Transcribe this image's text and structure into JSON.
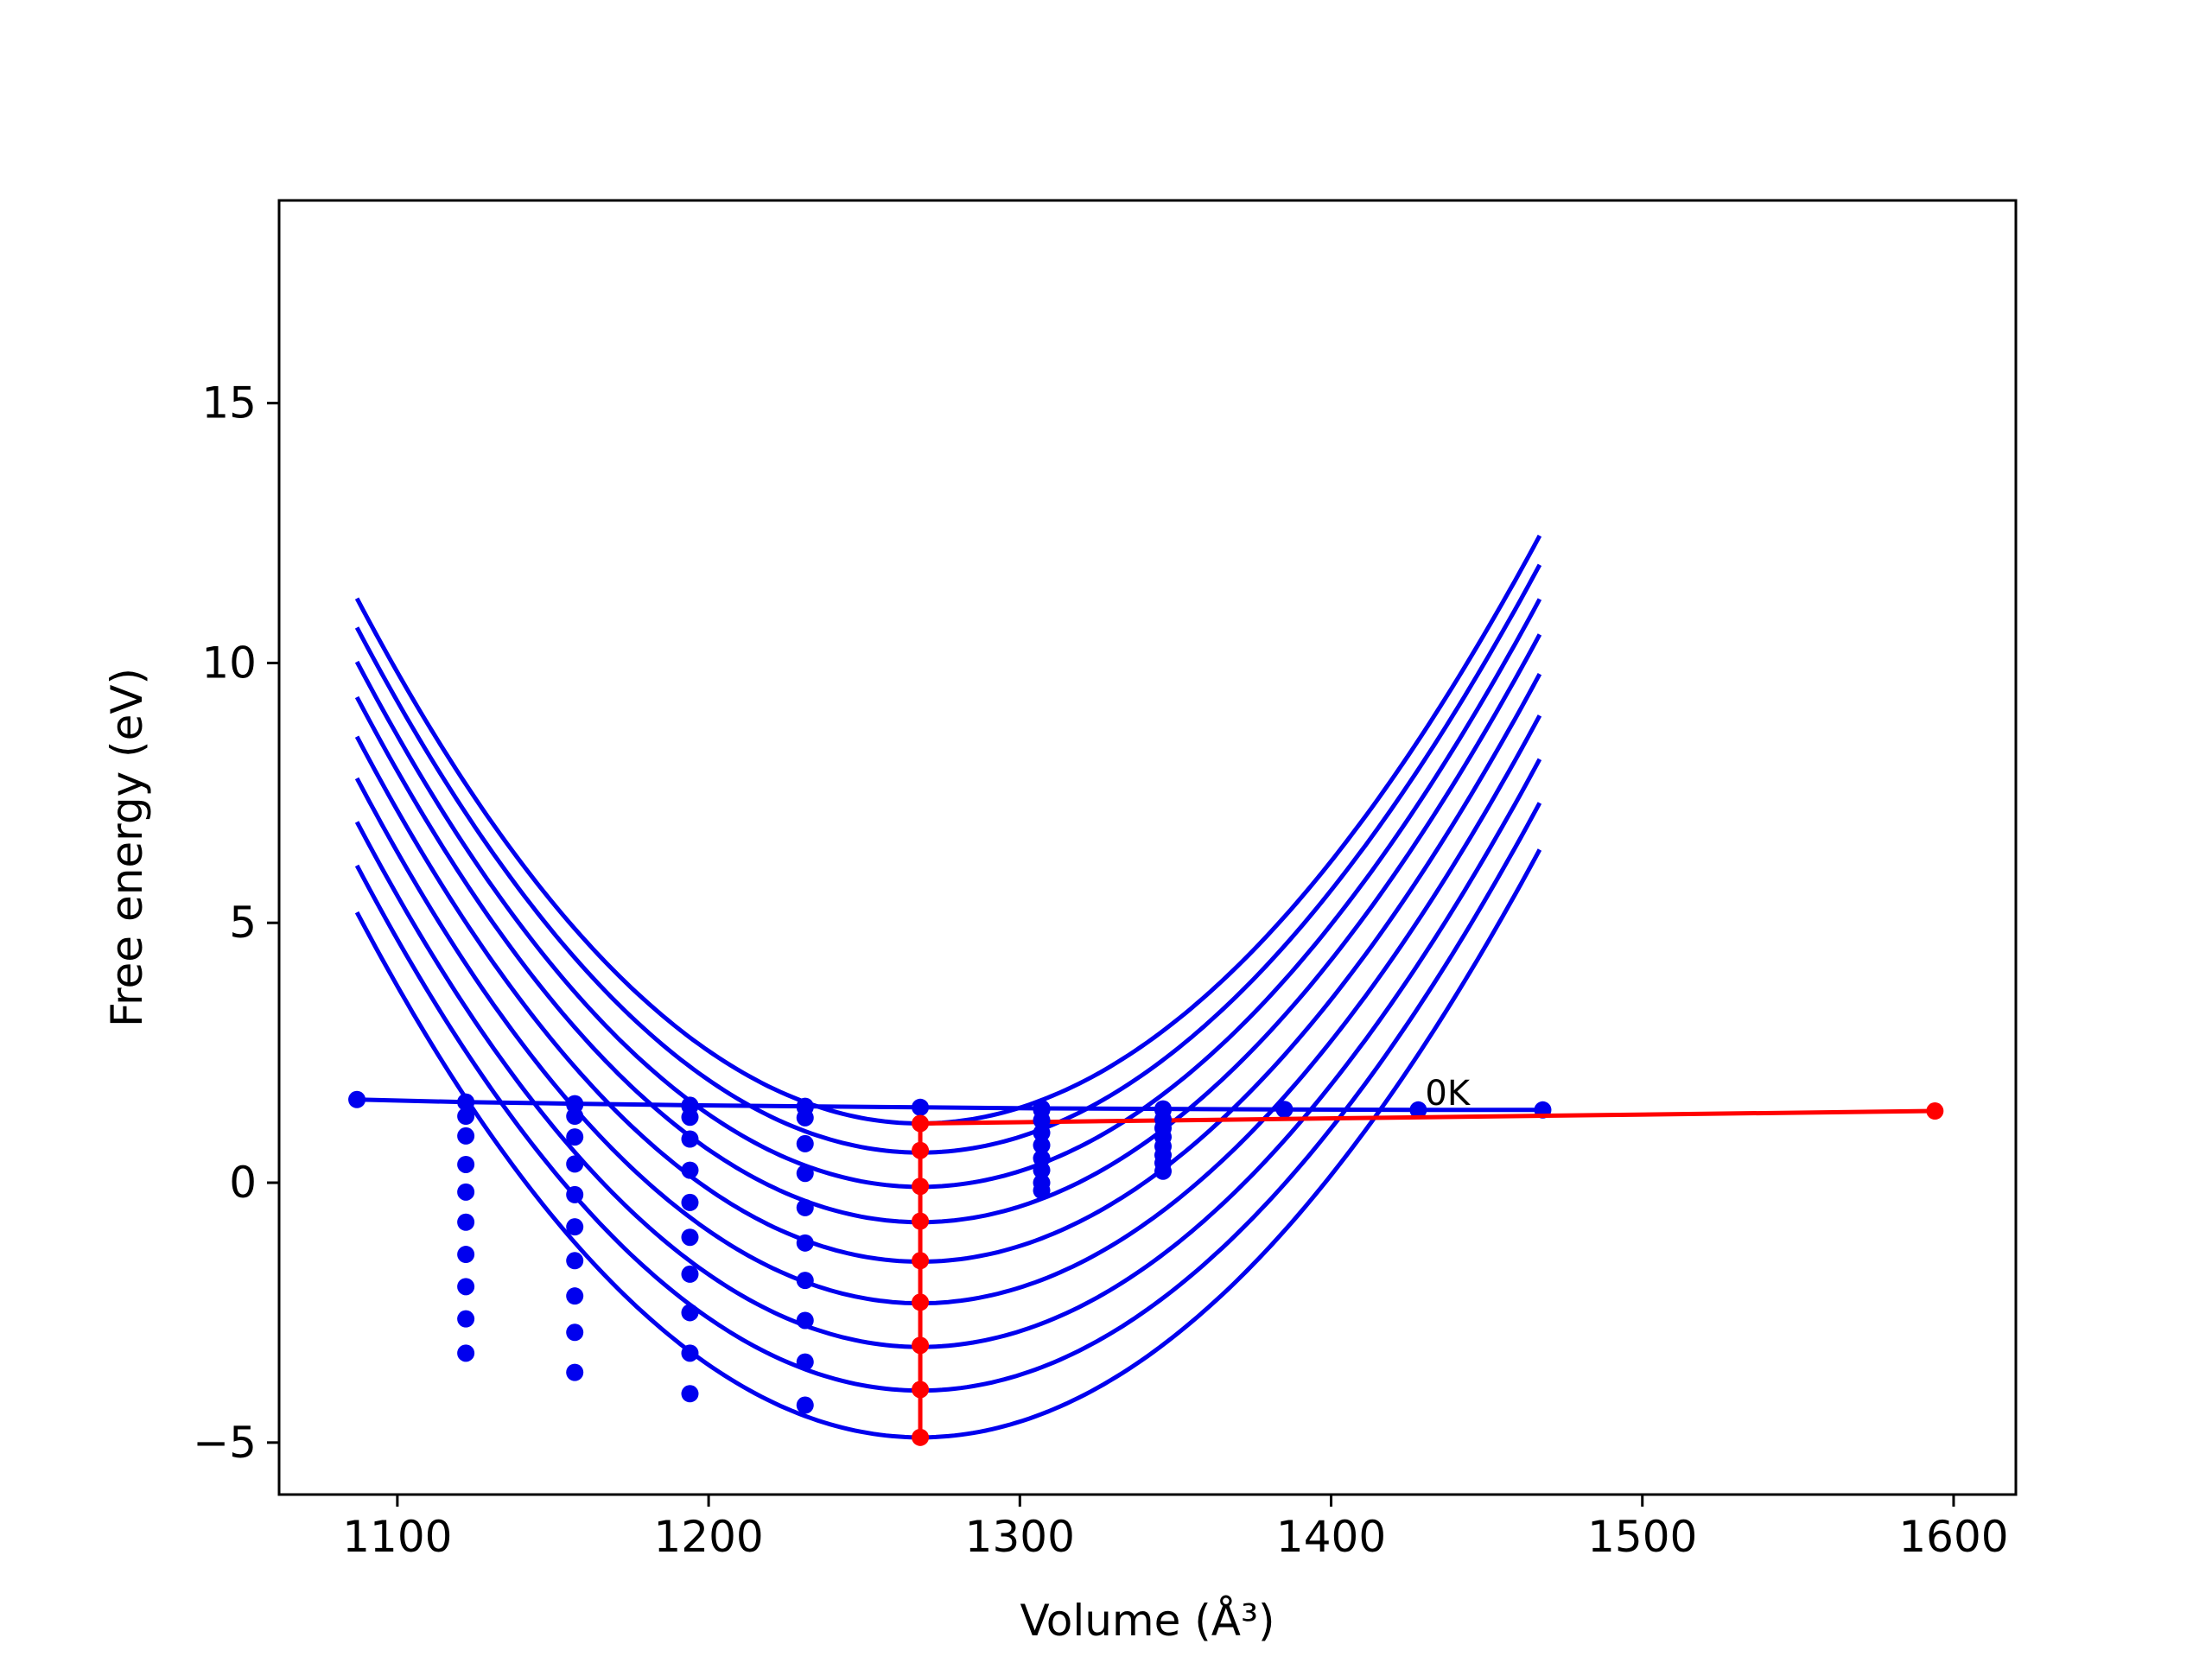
{
  "chart_data": {
    "type": "line",
    "title": "",
    "xlabel": "Volume (Å³)",
    "ylabel": "Free energy (eV)",
    "xlim": [
      1062,
      1620
    ],
    "ylim": [
      -6.0,
      18.9
    ],
    "xticks": [
      1100,
      1200,
      1300,
      1400,
      1500,
      1600
    ],
    "yticks": [
      -5,
      0,
      5,
      10,
      15
    ],
    "ytick_labels": [
      "−5",
      "0",
      "5",
      "10",
      "15"
    ],
    "grid": false,
    "legend": "none",
    "colors": {
      "fits": "#0000ee",
      "points": "#0000ee",
      "eq": "#ff0000"
    },
    "curves": {
      "x_range": [
        1087,
        1468
      ],
      "v0": 1268,
      "a": 0.0002975,
      "b": 6e-08,
      "series": [
        {
          "min": 1.14
        },
        {
          "min": 0.58
        },
        {
          "min": -0.08
        },
        {
          "min": -0.76
        },
        {
          "min": -1.52
        },
        {
          "min": -2.32
        },
        {
          "min": -3.16
        },
        {
          "min": -4.0
        },
        {
          "min": -4.9
        }
      ]
    },
    "point_columns": [
      {
        "x": 1122,
        "y": [
          1.55,
          1.28,
          0.9,
          0.35,
          -0.18,
          -0.76,
          -1.38,
          -2.0,
          -2.62,
          -3.28
        ]
      },
      {
        "x": 1157,
        "y": [
          1.5,
          1.28,
          0.88,
          0.36,
          -0.23,
          -0.85,
          -1.5,
          -2.18,
          -2.88,
          -3.65
        ]
      },
      {
        "x": 1194,
        "y": [
          1.47,
          1.26,
          0.84,
          0.24,
          -0.38,
          -1.05,
          -1.76,
          -2.5,
          -3.28,
          -4.06
        ]
      },
      {
        "x": 1231,
        "y": [
          1.45,
          1.25,
          0.75,
          0.18,
          -0.48,
          -1.16,
          -1.88,
          -2.65,
          -3.45,
          -4.28
        ]
      },
      {
        "x": 1307,
        "y": [
          1.4,
          1.2,
          0.96,
          0.72,
          0.47,
          0.24,
          0.0,
          -0.15
        ]
      },
      {
        "x": 1346,
        "y": [
          1.4,
          1.22,
          1.05,
          0.88,
          0.7,
          0.53,
          0.38,
          0.22
        ]
      }
    ],
    "zero_k_line": {
      "label": "0K",
      "x": [
        1087,
        1122,
        1157,
        1194,
        1231,
        1268,
        1307,
        1346,
        1385,
        1428,
        1468
      ],
      "y": [
        1.6,
        1.55,
        1.52,
        1.49,
        1.47,
        1.45,
        1.43,
        1.42,
        1.41,
        1.4,
        1.4
      ]
    },
    "equilibrium_column": {
      "x": 1268,
      "y": [
        1.14,
        0.62,
        -0.07,
        -0.74,
        -1.5,
        -2.3,
        -3.13,
        -3.98,
        -4.9
      ]
    },
    "equilibrium_line": {
      "x": [
        1268,
        1594
      ],
      "y": [
        1.14,
        1.38
      ]
    }
  }
}
